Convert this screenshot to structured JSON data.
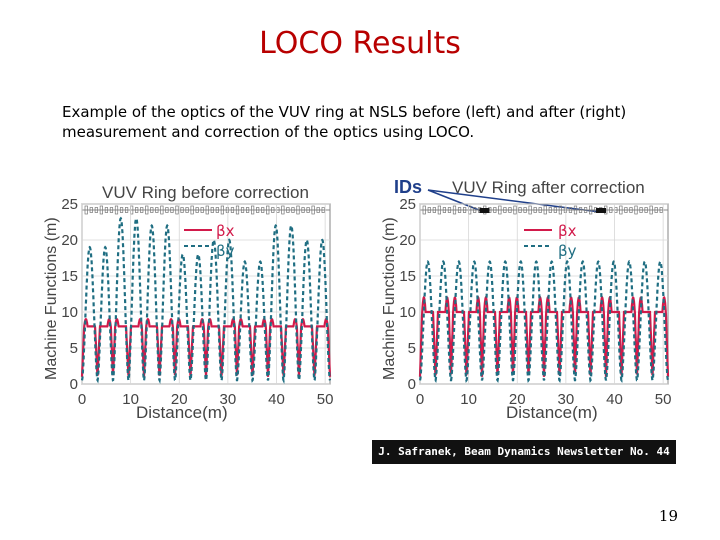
{
  "slide": {
    "title": "LOCO Results",
    "caption": "Example of the optics of the VUV ring at NSLS before (left) and after (right) measurement and correction of the optics using LOCO.",
    "credit": "J. Safranek, Beam Dynamics Newsletter No. 44",
    "page_number": "19"
  },
  "colors": {
    "title": "#b80000",
    "beta_x": "#d21a4a",
    "beta_y": "#1f6e82"
  },
  "chart_data": [
    {
      "type": "line",
      "title": "VUV Ring before correction",
      "xlabel": "Distance(m)",
      "ylabel": "Machine Functions (m)",
      "xticks": [
        0,
        10,
        20,
        30,
        40,
        50
      ],
      "yticks": [
        0,
        5,
        10,
        15,
        20,
        25
      ],
      "xlim": [
        0,
        51
      ],
      "ylim": [
        0,
        25
      ],
      "legend": {
        "position": "top-left",
        "entries": [
          "βx",
          "βy"
        ]
      },
      "series": [
        {
          "name": "βx",
          "style": "solid",
          "cells": 8,
          "peak": 9,
          "plateau": 8,
          "dip": 1
        },
        {
          "name": "βy",
          "style": "dashed",
          "cells": 8,
          "peaks": [
            19,
            23,
            22,
            18,
            20,
            17,
            22,
            20
          ],
          "min": 0.5
        }
      ]
    },
    {
      "type": "line",
      "title": "VUV Ring after correction",
      "annotation": "IDs",
      "xlabel": "Distance(m)",
      "ylabel": "Machine Functions (m)",
      "xticks": [
        0,
        10,
        20,
        30,
        40,
        50
      ],
      "yticks": [
        0,
        5,
        10,
        15,
        20,
        25
      ],
      "xlim": [
        0,
        51
      ],
      "ylim": [
        0,
        25
      ],
      "legend": {
        "position": "top-right",
        "entries": [
          "βx",
          "βy"
        ]
      },
      "series": [
        {
          "name": "βx",
          "style": "solid",
          "cells": 8,
          "peak": 12,
          "plateau": 10,
          "dip": 1
        },
        {
          "name": "βy",
          "style": "dashed",
          "cells": 8,
          "peaks": [
            17,
            17,
            17,
            17,
            17,
            17,
            17,
            17
          ],
          "min": 0.5
        }
      ]
    }
  ]
}
